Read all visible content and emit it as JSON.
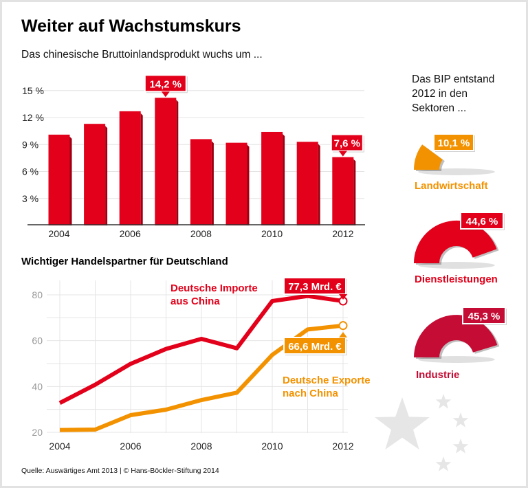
{
  "title": "Weiter auf Wachstumskurs",
  "source": "Quelle: Auswärtiges Amt 2013 | © Hans-Böckler-Stiftung 2014",
  "colors": {
    "red": "#e2001a",
    "orange": "#f39200",
    "crimson": "#c40c34",
    "grid": "#e4e4e4",
    "star": "#e6e6e6"
  },
  "chart_data": [
    {
      "type": "bar",
      "title": "Das chinesische Bruttoinlandsprodukt wuchs um ...",
      "categories": [
        "2004",
        "2005",
        "2006",
        "2007",
        "2008",
        "2009",
        "2010",
        "2011",
        "2012"
      ],
      "values": [
        10.1,
        11.3,
        12.7,
        14.2,
        9.6,
        9.2,
        10.4,
        9.3,
        7.6
      ],
      "xtick_labels": [
        "2004",
        "2006",
        "2008",
        "2010",
        "2012"
      ],
      "ytick_labels": [
        "3 %",
        "6 %",
        "9 %",
        "12 %",
        "15 %"
      ],
      "ylim": [
        0,
        15.5
      ],
      "grid": true,
      "annotations": [
        {
          "category": "2007",
          "text": "14,2 %"
        },
        {
          "category": "2012",
          "text": "7,6 %"
        }
      ]
    },
    {
      "type": "line",
      "title": "Wichtiger Handelspartner für Deutschland",
      "x": [
        2004,
        2005,
        2006,
        2007,
        2008,
        2009,
        2010,
        2011,
        2012
      ],
      "series": [
        {
          "name": "Deutsche Importe aus China",
          "name_lines": [
            "Deutsche Importe",
            "aus China"
          ],
          "color": "#e2001a",
          "values": [
            32.8,
            40.8,
            49.9,
            56.4,
            60.8,
            56.7,
            77.3,
            79.5,
            77.3
          ],
          "end_label": "77,3 Mrd. €"
        },
        {
          "name": "Deutsche Exporte nach China",
          "name_lines": [
            "Deutsche Exporte",
            "nach China"
          ],
          "color": "#f39200",
          "values": [
            21.0,
            21.2,
            27.5,
            29.9,
            34.1,
            37.3,
            53.8,
            64.9,
            66.6
          ],
          "end_label": "66,6 Mrd. €"
        }
      ],
      "xtick_labels": [
        "2004",
        "2006",
        "2008",
        "2010",
        "2012"
      ],
      "ytick_labels": [
        "20",
        "40",
        "60",
        "80"
      ],
      "ylim": [
        20,
        85
      ],
      "grid": true
    },
    {
      "type": "pie",
      "title_lines": [
        "Das BIP entstand",
        "2012 in den",
        "Sektoren ..."
      ],
      "slices": [
        {
          "label": "Landwirtschaft",
          "value": 10.1,
          "text": "10,1 %",
          "color": "#f39200"
        },
        {
          "label": "Dienstleistungen",
          "value": 44.6,
          "text": "44,6 %",
          "color": "#e2001a"
        },
        {
          "label": "Industrie",
          "value": 45.3,
          "text": "45,3 %",
          "color": "#c40c34"
        }
      ]
    }
  ]
}
